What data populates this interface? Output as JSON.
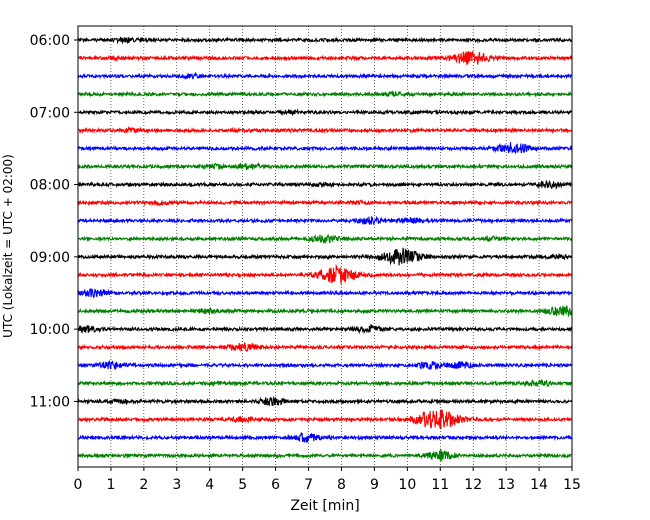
{
  "chart_data": {
    "type": "line",
    "subtype": "helicorder",
    "xlabel": "Zeit  [min]",
    "ylabel": "UTC (Lokalzeit = UTC + 02:00)",
    "xlim": [
      0,
      15
    ],
    "x_ticks": [
      "0",
      "1",
      "2",
      "3",
      "4",
      "5",
      "6",
      "7",
      "8",
      "9",
      "10",
      "11",
      "12",
      "13",
      "14",
      "15"
    ],
    "y_tick_labels": [
      "06:00",
      "07:00",
      "08:00",
      "09:00",
      "10:00",
      "11:00"
    ],
    "trace_interval_minutes": 15,
    "grid": "vertical dotted",
    "trace_colors": [
      "#000000",
      "#ff0000",
      "#0000ff",
      "#008000"
    ],
    "series": [
      {
        "start": "06:00",
        "events": [
          {
            "t": 1.4,
            "amp": 0.45
          }
        ]
      },
      {
        "start": "06:15",
        "events": [
          {
            "t": 11.9,
            "amp": 1.6
          },
          {
            "t": 1.2,
            "amp": 0.3
          }
        ]
      },
      {
        "start": "06:30",
        "events": [
          {
            "t": 3.5,
            "amp": 0.35
          }
        ]
      },
      {
        "start": "06:45",
        "events": [
          {
            "t": 9.6,
            "amp": 0.35
          }
        ]
      },
      {
        "start": "07:00",
        "events": [
          {
            "t": 6.4,
            "amp": 0.3
          }
        ]
      },
      {
        "start": "07:15",
        "events": [
          {
            "t": 1.6,
            "amp": 0.3
          }
        ]
      },
      {
        "start": "07:30",
        "events": [
          {
            "t": 13.2,
            "amp": 1.3
          }
        ]
      },
      {
        "start": "07:45",
        "events": [
          {
            "t": 5.2,
            "amp": 0.6
          },
          {
            "t": 4.1,
            "amp": 0.4
          }
        ]
      },
      {
        "start": "08:00",
        "events": [
          {
            "t": 14.3,
            "amp": 0.7
          },
          {
            "t": 7.4,
            "amp": 0.35
          }
        ]
      },
      {
        "start": "08:15",
        "events": [
          {
            "t": 2.5,
            "amp": 0.3
          },
          {
            "t": 8.5,
            "amp": 0.25
          }
        ]
      },
      {
        "start": "08:30",
        "events": [
          {
            "t": 8.9,
            "amp": 0.7
          },
          {
            "t": 10.1,
            "amp": 0.5
          }
        ]
      },
      {
        "start": "08:45",
        "events": [
          {
            "t": 7.5,
            "amp": 0.75
          },
          {
            "t": 12.6,
            "amp": 0.3
          }
        ]
      },
      {
        "start": "09:00",
        "events": [
          {
            "t": 9.8,
            "amp": 2.0
          },
          {
            "t": 14.6,
            "amp": 0.3
          }
        ]
      },
      {
        "start": "09:15",
        "events": [
          {
            "t": 7.9,
            "amp": 2.0
          }
        ]
      },
      {
        "start": "09:30",
        "events": [
          {
            "t": 0.5,
            "amp": 0.75
          }
        ]
      },
      {
        "start": "09:45",
        "events": [
          {
            "t": 14.7,
            "amp": 1.0
          },
          {
            "t": 3.9,
            "amp": 0.4
          }
        ]
      },
      {
        "start": "10:00",
        "events": [
          {
            "t": 0.2,
            "amp": 0.7
          },
          {
            "t": 8.8,
            "amp": 0.75
          }
        ]
      },
      {
        "start": "10:15",
        "events": [
          {
            "t": 5.0,
            "amp": 0.9
          }
        ]
      },
      {
        "start": "10:30",
        "events": [
          {
            "t": 1.0,
            "amp": 0.7
          },
          {
            "t": 10.7,
            "amp": 0.7
          },
          {
            "t": 11.6,
            "amp": 0.6
          }
        ]
      },
      {
        "start": "10:45",
        "events": [
          {
            "t": 14.0,
            "amp": 0.6
          },
          {
            "t": 4.3,
            "amp": 0.25
          }
        ]
      },
      {
        "start": "11:00",
        "events": [
          {
            "t": 5.9,
            "amp": 0.8
          },
          {
            "t": 1.3,
            "amp": 0.3
          }
        ]
      },
      {
        "start": "11:15",
        "events": [
          {
            "t": 10.9,
            "amp": 2.3
          },
          {
            "t": 5.0,
            "amp": 0.5
          }
        ]
      },
      {
        "start": "11:30",
        "events": [
          {
            "t": 6.9,
            "amp": 0.9
          }
        ]
      },
      {
        "start": "11:45",
        "events": [
          {
            "t": 11.0,
            "amp": 1.0
          }
        ]
      }
    ]
  }
}
